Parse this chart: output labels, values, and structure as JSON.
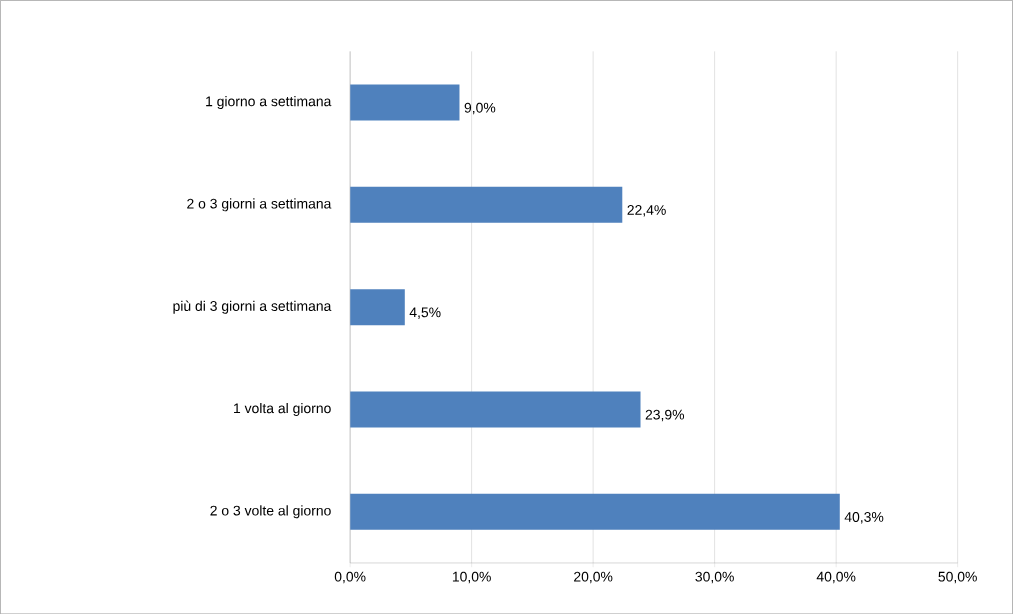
{
  "chart_data": {
    "type": "bar",
    "orientation": "horizontal",
    "categories": [
      "1 giorno a settimana",
      "2 o 3 giorni a settimana",
      "più di 3 giorni a settimana",
      "1 volta al giorno",
      "2 o 3 volte al giorno"
    ],
    "values": [
      9.0,
      22.4,
      4.5,
      23.9,
      40.3
    ],
    "value_labels": [
      "9,0%",
      "22,4%",
      "4,5%",
      "23,9%",
      "40,3%"
    ],
    "color": "#4f81bd",
    "xlim": [
      0,
      50
    ],
    "xticks": [
      {
        "value": 0,
        "label": "0,0%"
      },
      {
        "value": 10,
        "label": "10,0%"
      },
      {
        "value": 20,
        "label": "20,0%"
      },
      {
        "value": 30,
        "label": "30,0%"
      },
      {
        "value": 40,
        "label": "40,0%"
      },
      {
        "value": 50,
        "label": "50,0%"
      }
    ],
    "grid": "x"
  }
}
